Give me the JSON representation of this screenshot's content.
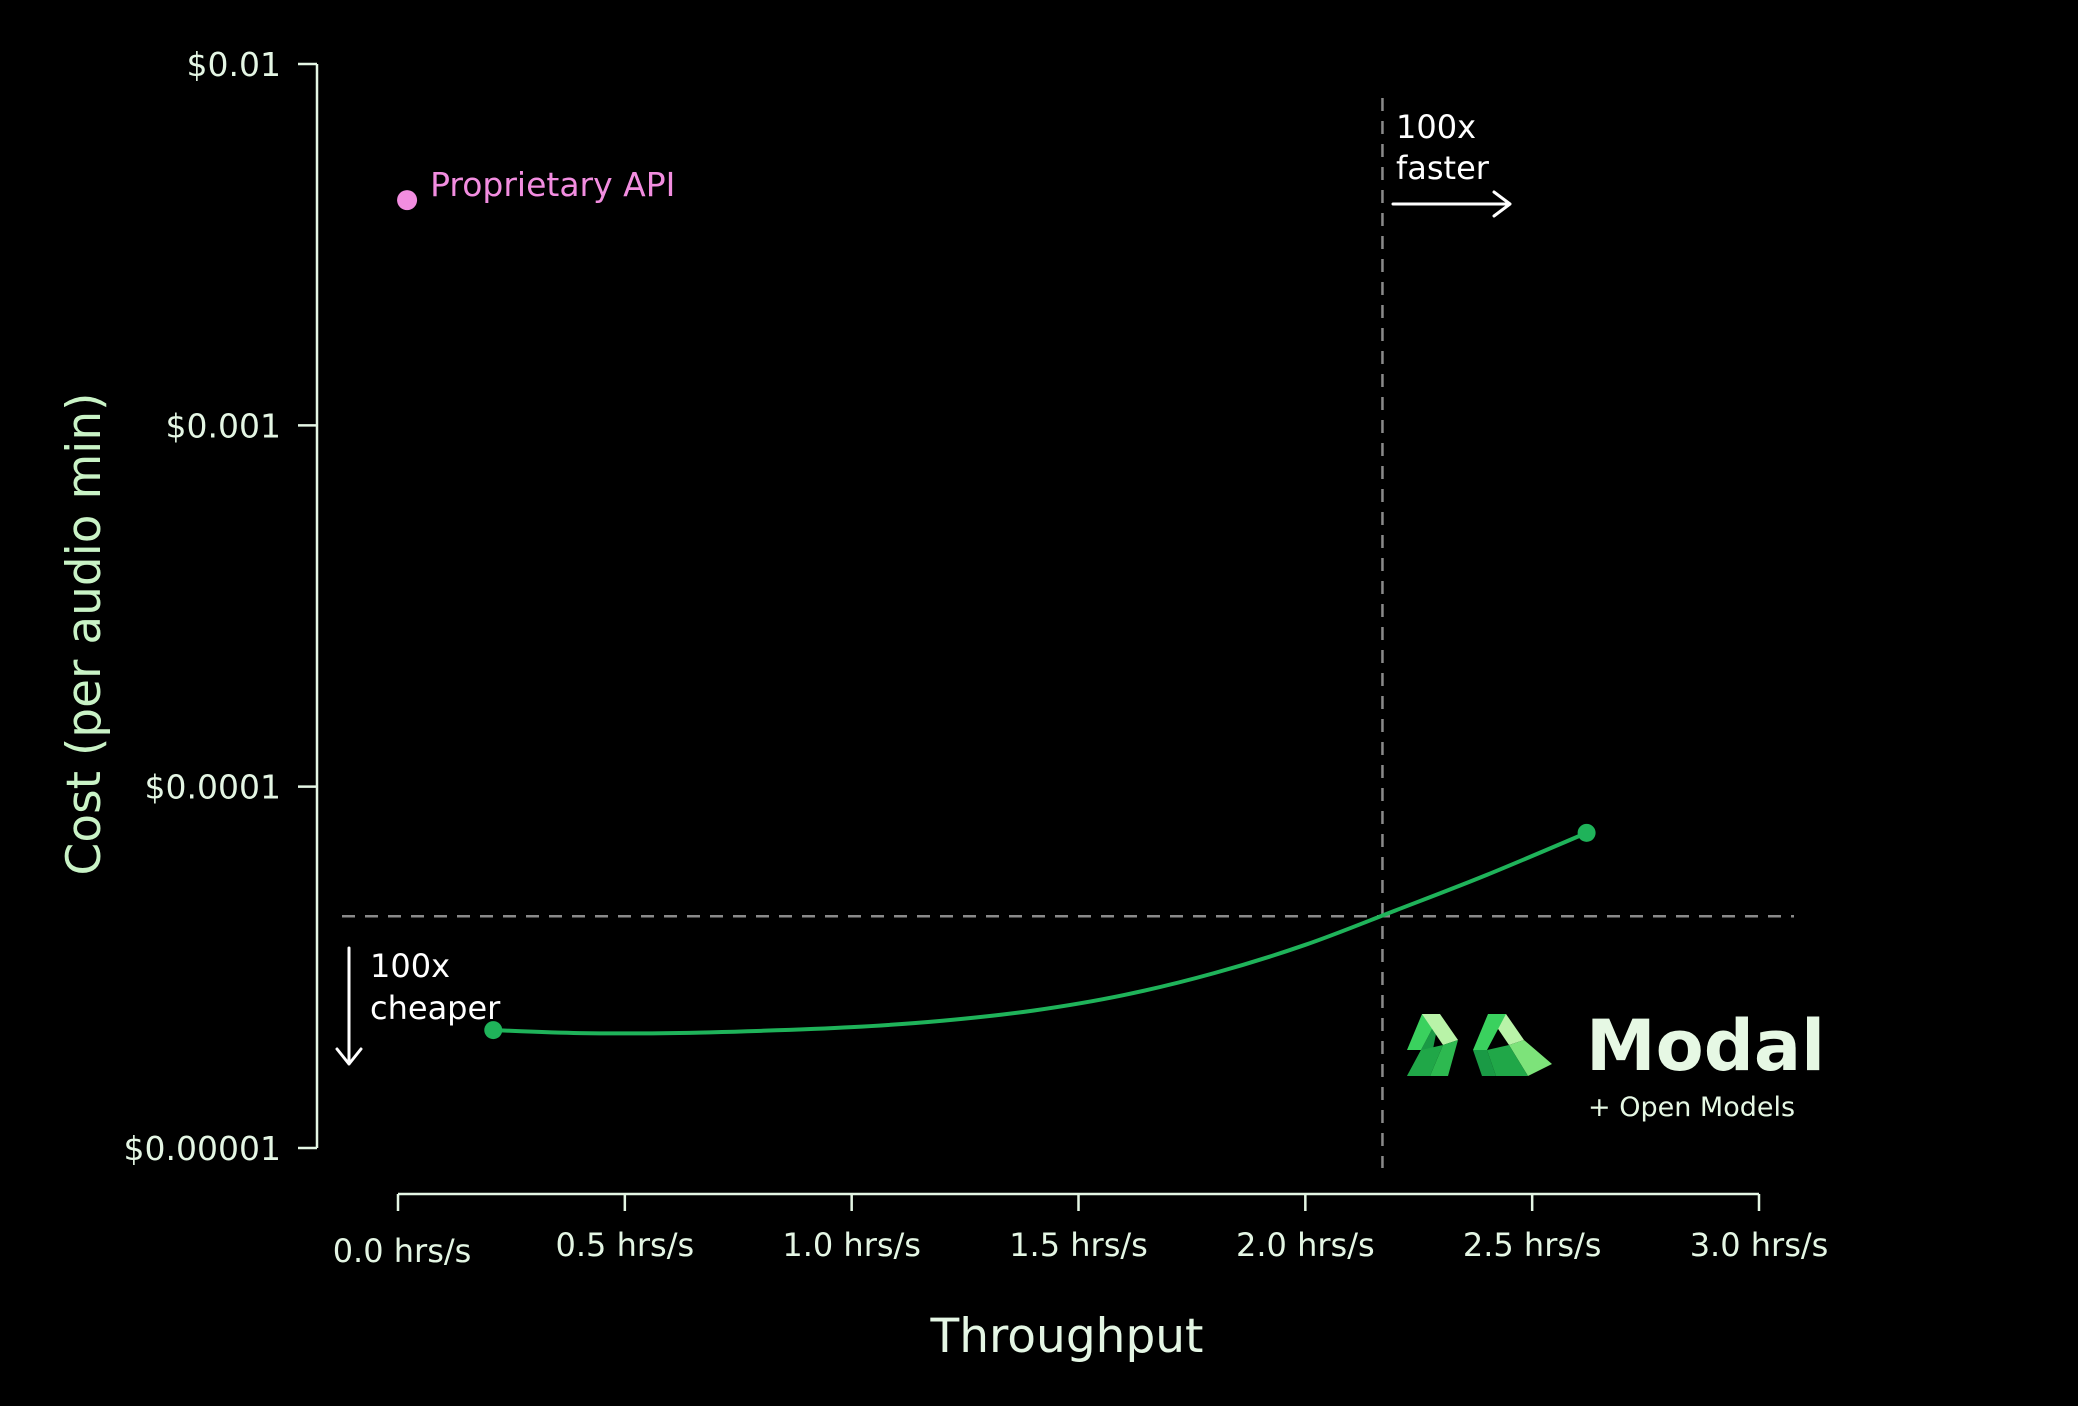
{
  "chart_data": {
    "type": "line",
    "xlabel": "Throughput",
    "ylabel": "Cost (per audio min)",
    "x_scale": "linear",
    "y_scale": "log",
    "xlim": [
      0,
      3
    ],
    "ylim": [
      1e-05,
      0.01
    ],
    "x_ticks": [
      "0.0 hrs/s",
      "0.5 hrs/s",
      "1.0 hrs/s",
      "1.5 hrs/s",
      "2.0 hrs/s",
      "2.5 hrs/s",
      "3.0 hrs/s"
    ],
    "x_tick_values": [
      0,
      0.5,
      1.0,
      1.5,
      2.0,
      2.5,
      3.0
    ],
    "y_ticks": [
      "$0.01",
      "$0.001",
      "$0.0001",
      "$0.00001"
    ],
    "y_tick_values": [
      0.01,
      0.001,
      0.0001,
      1e-05
    ],
    "grid": false,
    "series": [
      {
        "name": "Proprietary API",
        "type": "scatter",
        "color": "#f28de0",
        "x": [
          0.02
        ],
        "y": [
          0.0042
        ]
      },
      {
        "name": "Modal + Open Models",
        "type": "line",
        "color": "#1fb35a",
        "x": [
          0.21,
          0.4,
          0.6,
          0.8,
          1.0,
          1.2,
          1.4,
          1.6,
          1.8,
          2.0,
          2.2,
          2.4,
          2.62
        ],
        "y": [
          2.12e-05,
          2.08e-05,
          2.08e-05,
          2.11e-05,
          2.16e-05,
          2.25e-05,
          2.4e-05,
          2.65e-05,
          3.05e-05,
          3.65e-05,
          4.55e-05,
          5.7e-05,
          7.45e-05
        ]
      }
    ],
    "reference_lines": {
      "vertical_x": 2.17,
      "horizontal_y": 4.38e-05
    },
    "annotations": [
      {
        "text_lines": [
          "100x",
          "faster"
        ]
      },
      {
        "text_lines": [
          "100x",
          "cheaper"
        ]
      }
    ]
  },
  "logo": {
    "name": "Modal",
    "subtitle": "+ Open Models",
    "colors": [
      "#3ad15e",
      "#7de37a",
      "#b9f3a8",
      "#1a9a45"
    ]
  },
  "colors": {
    "background": "#000000",
    "axis_text": "#e4f6e4",
    "guide": "#8a8a8a"
  }
}
